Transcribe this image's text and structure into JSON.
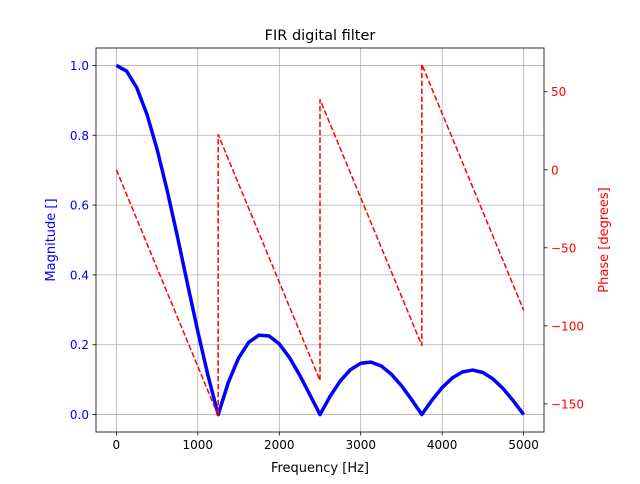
{
  "chart_data": {
    "type": "line",
    "title": "FIR digital filter",
    "xlabel": "Frequency [Hz]",
    "ylabel": "Magnitude []",
    "y2label": "Phase [degrees]",
    "xlim": [
      -250,
      5250
    ],
    "ylim": [
      -0.05,
      1.05
    ],
    "y2lim": [
      -168,
      78
    ],
    "grid": true,
    "xticks": [
      0,
      1000,
      2000,
      3000,
      4000,
      5000
    ],
    "xtick_labels": [
      "0",
      "1000",
      "2000",
      "3000",
      "4000",
      "5000"
    ],
    "yticks": [
      0.0,
      0.2,
      0.4,
      0.6,
      0.8,
      1.0
    ],
    "ytick_labels": [
      "0.0",
      "0.2",
      "0.4",
      "0.6",
      "0.8",
      "1.0"
    ],
    "y2ticks": [
      50,
      0,
      -50,
      -100,
      -150
    ],
    "y2tick_labels": [
      "50",
      "0",
      "−50",
      "−100",
      "−150"
    ],
    "colors": {
      "magnitude": "#0000ff",
      "phase": "#ff0000",
      "grid": "#b0b0b0"
    },
    "series": [
      {
        "axis": "left",
        "style": "solid",
        "x": [
          0,
          125,
          250,
          375,
          500,
          625,
          750,
          875,
          1000,
          1125,
          1250,
          1375,
          1500,
          1625,
          1750,
          1875,
          2000,
          2125,
          2250,
          2375,
          2500,
          2625,
          2750,
          2875,
          3000,
          3125,
          3250,
          3375,
          3500,
          3625,
          3750,
          3875,
          4000,
          4125,
          4250,
          4375,
          4500,
          4625,
          4750,
          4875,
          5000
        ],
        "y": [
          1.0,
          0.984,
          0.9365,
          0.8604,
          0.76,
          0.6407,
          0.5093,
          0.3726,
          0.2378,
          0.1116,
          0.0,
          0.0923,
          0.1618,
          0.207,
          0.2275,
          0.225,
          0.2023,
          0.1633,
          0.1131,
          0.0569,
          0.0,
          0.0526,
          0.0966,
          0.1288,
          0.147,
          0.1503,
          0.1394,
          0.1159,
          0.0825,
          0.0425,
          0.0,
          0.0412,
          0.0773,
          0.1051,
          0.1223,
          0.1274,
          0.1204,
          0.1018,
          0.0737,
          0.0387,
          0.0
        ]
      },
      {
        "axis": "right",
        "style": "dashed",
        "x": [
          0,
          1250,
          1250,
          2500,
          2500,
          3750,
          3750,
          5000
        ],
        "y": [
          0,
          -157.5,
          22.5,
          -135,
          45,
          -112.5,
          67.5,
          -90
        ]
      }
    ]
  }
}
